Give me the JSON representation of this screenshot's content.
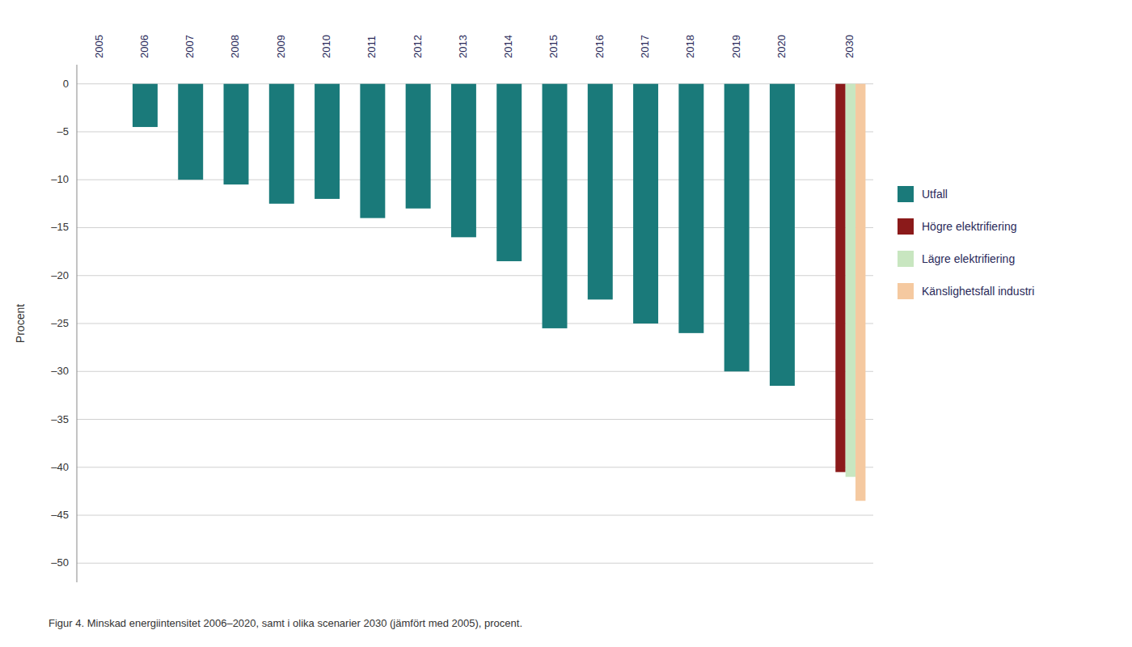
{
  "chart_data": {
    "type": "bar",
    "ylabel": "Procent",
    "caption": "Figur 4. Minskad energiintensitet 2006–2020, samt i olika scenarier 2030 (jämfört med 2005), procent.",
    "categories": [
      "2005",
      "2006",
      "2007",
      "2008",
      "2009",
      "2010",
      "2011",
      "2012",
      "2013",
      "2014",
      "2015",
      "2016",
      "2017",
      "2018",
      "2019",
      "2020",
      "2030"
    ],
    "series": [
      {
        "name": "Utfall",
        "color": "#1a7a7a",
        "values": [
          0,
          -4.5,
          -10.0,
          -10.5,
          -12.5,
          -12.0,
          -14.0,
          -13.0,
          -16.0,
          -18.5,
          -25.5,
          -22.5,
          -25.0,
          -26.0,
          -30.0,
          -31.5,
          null
        ]
      },
      {
        "name": "Högre elektrifiering",
        "color": "#8b1a1a",
        "values": [
          null,
          null,
          null,
          null,
          null,
          null,
          null,
          null,
          null,
          null,
          null,
          null,
          null,
          null,
          null,
          null,
          -40.5
        ]
      },
      {
        "name": "Lägre elektrifiering",
        "color": "#c8e6c0",
        "values": [
          null,
          null,
          null,
          null,
          null,
          null,
          null,
          null,
          null,
          null,
          null,
          null,
          null,
          null,
          null,
          null,
          -41.0
        ]
      },
      {
        "name": "Känslighetsfall industri",
        "color": "#f5c9a0",
        "values": [
          null,
          null,
          null,
          null,
          null,
          null,
          null,
          null,
          null,
          null,
          null,
          null,
          null,
          null,
          null,
          null,
          -43.5
        ]
      }
    ],
    "ylim": [
      -52,
      2
    ],
    "yticks": [
      0,
      {
        "value": -5,
        "label": "–5"
      },
      {
        "value": -10,
        "label": "–10"
      },
      {
        "value": -15,
        "label": "–15"
      },
      {
        "value": -20,
        "label": "–20"
      },
      {
        "value": -25,
        "label": "–25"
      },
      {
        "value": -30,
        "label": "–30"
      },
      {
        "value": -35,
        "label": "–35"
      },
      {
        "value": -40,
        "label": "–40"
      },
      {
        "value": -45,
        "label": "–45"
      },
      {
        "value": -50,
        "label": "–50"
      }
    ],
    "grid": true,
    "legend": "right"
  }
}
